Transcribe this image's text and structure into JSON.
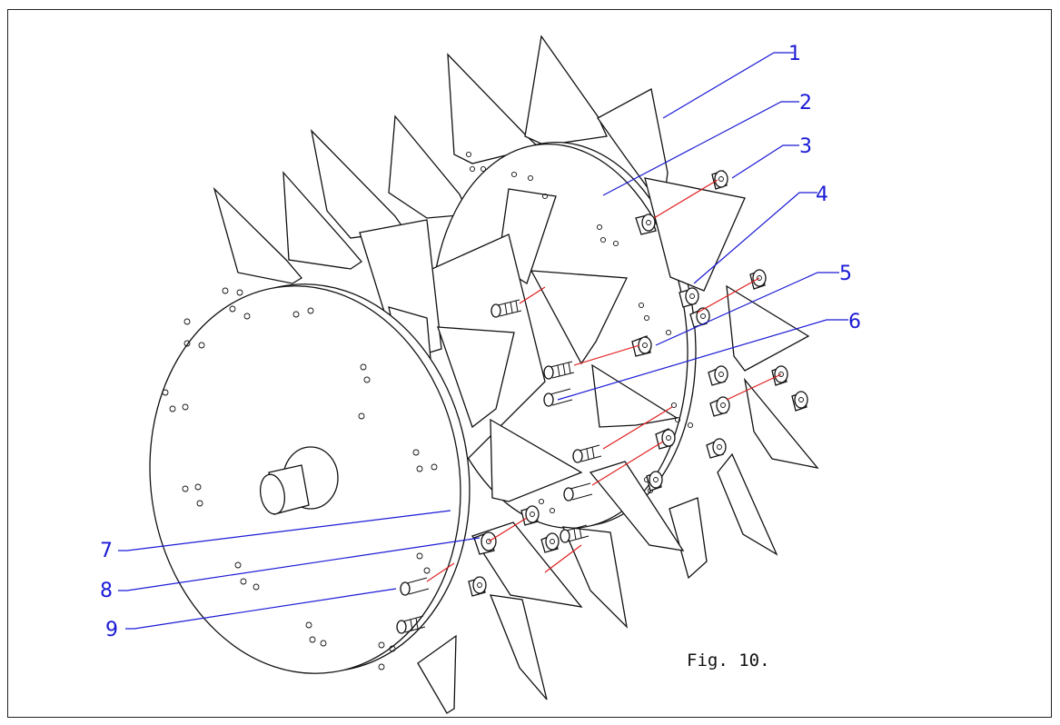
{
  "figure": {
    "caption": "Fig. 10."
  },
  "colors": {
    "callout": "#1a1ad6",
    "axis_line": "#e01818",
    "line": "#111111"
  },
  "callouts": [
    {
      "number": "1"
    },
    {
      "number": "2"
    },
    {
      "number": "3"
    },
    {
      "number": "4"
    },
    {
      "number": "5"
    },
    {
      "number": "6"
    },
    {
      "number": "7"
    },
    {
      "number": "8"
    },
    {
      "number": "9"
    }
  ]
}
